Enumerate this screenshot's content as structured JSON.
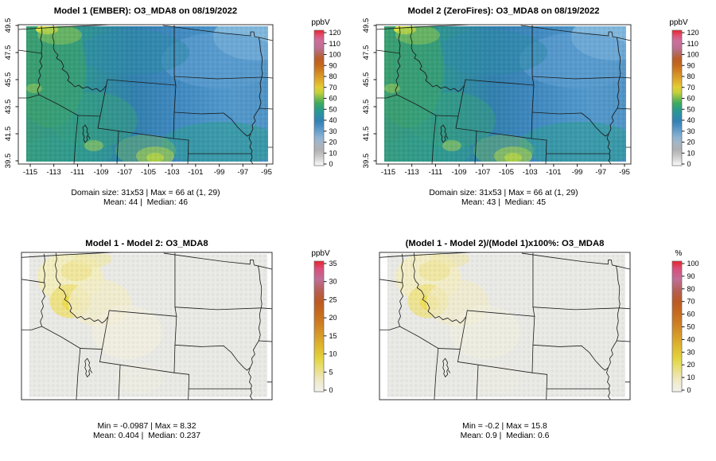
{
  "figure": {
    "background": "#ffffff"
  },
  "panels": [
    {
      "key": "model1",
      "title": "Model 1 (EMBER): O3_MDA8 on 08/19/2022",
      "caption1": "Domain size: 31x53 | Max = 66 at (1, 29)",
      "caption2": "Mean: 44 |  Median: 46",
      "colorbar": {
        "unit": "ppbV",
        "ticks": [
          "0",
          "10",
          "20",
          "30",
          "40",
          "50",
          "60",
          "70",
          "80",
          "90",
          "100",
          "110",
          "120"
        ],
        "palette": "full"
      },
      "axes": {
        "x_ticks": [
          "-115",
          "-113",
          "-111",
          "-109",
          "-107",
          "-105",
          "-103",
          "-101",
          "-99",
          "-97",
          "-95"
        ],
        "y_ticks": [
          "39.5",
          "41.5",
          "43.5",
          "45.5",
          "47.5",
          "49.5"
        ]
      },
      "map_style": "ozone"
    },
    {
      "key": "model2",
      "title": "Model 2 (ZeroFires): O3_MDA8 on 08/19/2022",
      "caption1": "Domain size: 31x53 | Max = 66 at (1, 29)",
      "caption2": "Mean: 43 |  Median: 45",
      "colorbar": {
        "unit": "ppbV",
        "ticks": [
          "0",
          "10",
          "20",
          "30",
          "40",
          "50",
          "60",
          "70",
          "80",
          "90",
          "100",
          "110",
          "120"
        ],
        "palette": "full"
      },
      "axes": {
        "x_ticks": [
          "-115",
          "-113",
          "-111",
          "-109",
          "-107",
          "-105",
          "-103",
          "-101",
          "-99",
          "-97",
          "-95"
        ],
        "y_ticks": [
          "39.5",
          "41.5",
          "43.5",
          "45.5",
          "47.5",
          "49.5"
        ]
      },
      "map_style": "ozone"
    },
    {
      "key": "diff",
      "title": "Model 1 - Model 2: O3_MDA8",
      "caption1": "Min = -0.0987 | Max = 8.32",
      "caption2": "Mean: 0.404 |  Median: 0.237",
      "colorbar": {
        "unit": "ppbV",
        "ticks": [
          "0",
          "5",
          "10",
          "15",
          "20",
          "25",
          "30",
          "35"
        ],
        "palette": "warm"
      },
      "axes": null,
      "map_style": "diff"
    },
    {
      "key": "pct",
      "title": "(Model 1 - Model 2)/(Model 1)x100%: O3_MDA8",
      "caption1": "Min = -0.2 | Max = 15.8",
      "caption2": "Mean: 0.9 |  Median: 0.6",
      "colorbar": {
        "unit": "%",
        "ticks": [
          "0",
          "10",
          "20",
          "30",
          "40",
          "50",
          "60",
          "70",
          "80",
          "90",
          "100"
        ],
        "palette": "warm"
      },
      "axes": null,
      "map_style": "diff"
    }
  ],
  "chart_data": [
    {
      "type": "heatmap",
      "title": "Model 1 (EMBER): O3_MDA8 on 08/19/2022",
      "variable": "O3_MDA8",
      "model": "Model 1 (EMBER)",
      "date": "08/19/2022",
      "units": "ppbV",
      "domain_size": "31x53",
      "max": 66,
      "max_at": "(1, 29)",
      "mean": 44,
      "median": 46,
      "x_tick_range": [
        -115,
        -95
      ],
      "y_tick_range": [
        39.5,
        49.5
      ],
      "colorbar_range": [
        0,
        120
      ],
      "colorbar_tick_step": 10,
      "legend_position": "right"
    },
    {
      "type": "heatmap",
      "title": "Model 2 (ZeroFires): O3_MDA8 on 08/19/2022",
      "variable": "O3_MDA8",
      "model": "Model 2 (ZeroFires)",
      "date": "08/19/2022",
      "units": "ppbV",
      "domain_size": "31x53",
      "max": 66,
      "max_at": "(1, 29)",
      "mean": 43,
      "median": 45,
      "x_tick_range": [
        -115,
        -95
      ],
      "y_tick_range": [
        39.5,
        49.5
      ],
      "colorbar_range": [
        0,
        120
      ],
      "colorbar_tick_step": 10,
      "legend_position": "right"
    },
    {
      "type": "heatmap",
      "title": "Model 1 - Model 2: O3_MDA8",
      "variable": "O3_MDA8",
      "units": "ppbV",
      "min": -0.0987,
      "max": 8.32,
      "mean": 0.404,
      "median": 0.237,
      "colorbar_range": [
        0,
        35
      ],
      "colorbar_tick_step": 5,
      "legend_position": "right"
    },
    {
      "type": "heatmap",
      "title": "(Model 1 - Model 2)/(Model 1)x100%: O3_MDA8",
      "variable": "O3_MDA8",
      "units": "%",
      "min": -0.2,
      "max": 15.8,
      "mean": 0.9,
      "median": 0.6,
      "colorbar_range": [
        0,
        100
      ],
      "colorbar_tick_step": 10,
      "legend_position": "right"
    }
  ]
}
